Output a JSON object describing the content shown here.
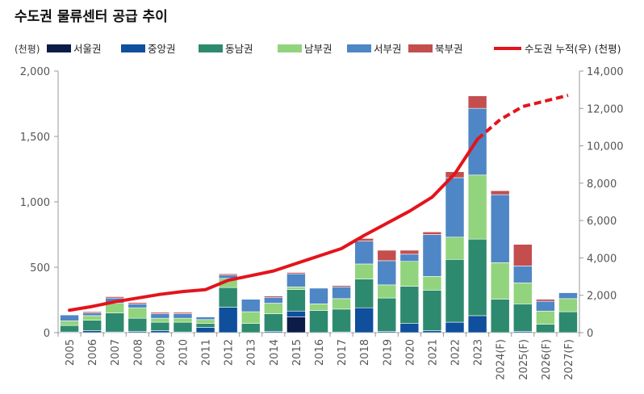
{
  "title": "수도권 물류센터 공급 추이",
  "chart_data": {
    "type": "bar",
    "stacked": true,
    "categories": [
      "2005",
      "2006",
      "2007",
      "2008",
      "2009",
      "2010",
      "2011",
      "2012",
      "2013",
      "2014",
      "2015",
      "2016",
      "2017",
      "2018",
      "2019",
      "2020",
      "2021",
      "2022",
      "2023",
      "2024(F)",
      "2025(F)",
      "2026(F)",
      "2027(F)"
    ],
    "left_axis": {
      "unit": "(천평)",
      "ylim": [
        0,
        2000
      ],
      "ticks": [
        "0",
        "500",
        "1,000",
        "1,500",
        "2,000"
      ],
      "tick_values": [
        0,
        500,
        1000,
        1500,
        2000
      ]
    },
    "right_axis": {
      "unit": "(천평)",
      "ylim": [
        0,
        14000
      ],
      "ticks": [
        "0",
        "2,000",
        "4,000",
        "6,000",
        "8,000",
        "10,000",
        "12,000",
        "14,000"
      ],
      "tick_values": [
        0,
        2000,
        4000,
        6000,
        8000,
        10000,
        12000,
        14000
      ]
    },
    "series": [
      {
        "name": "서울권",
        "color": "#0d1b48",
        "values": [
          0,
          0,
          0,
          0,
          0,
          0,
          0,
          0,
          0,
          0,
          120,
          0,
          0,
          0,
          0,
          0,
          0,
          0,
          0,
          0,
          0,
          0,
          0
        ]
      },
      {
        "name": "중앙권",
        "color": "#0f4f9c",
        "values": [
          5,
          15,
          5,
          10,
          15,
          5,
          40,
          195,
          0,
          10,
          45,
          0,
          5,
          190,
          10,
          70,
          15,
          80,
          130,
          0,
          10,
          0,
          0
        ]
      },
      {
        "name": "동남권",
        "color": "#2e8a6e",
        "values": [
          50,
          80,
          145,
          100,
          65,
          75,
          30,
          150,
          70,
          135,
          165,
          170,
          175,
          220,
          255,
          285,
          310,
          480,
          585,
          255,
          210,
          65,
          160
        ]
      },
      {
        "name": "남부권",
        "color": "#92d47d",
        "values": [
          35,
          35,
          75,
          80,
          30,
          30,
          30,
          70,
          90,
          80,
          20,
          50,
          80,
          115,
          100,
          190,
          105,
          170,
          490,
          280,
          160,
          100,
          100
        ]
      },
      {
        "name": "서부권",
        "color": "#4f86c6",
        "values": [
          45,
          20,
          40,
          30,
          35,
          35,
          20,
          25,
          95,
          45,
          100,
          120,
          90,
          175,
          185,
          55,
          320,
          455,
          510,
          520,
          130,
          75,
          45
        ]
      },
      {
        "name": "북부권",
        "color": "#c44e4e",
        "values": [
          0,
          10,
          10,
          10,
          10,
          10,
          0,
          10,
          0,
          10,
          10,
          0,
          10,
          20,
          80,
          30,
          20,
          45,
          95,
          30,
          165,
          15,
          0
        ]
      }
    ],
    "line": {
      "name": "수도권 누적(우) (천평)",
      "color": "#e3141b",
      "axis": "right",
      "values": [
        1200,
        1400,
        1650,
        1850,
        2050,
        2200,
        2300,
        2800,
        3050,
        3300,
        3700,
        4100,
        4500,
        5200,
        5850,
        6500,
        7250,
        8500,
        10350,
        11400,
        12100,
        12400,
        12700
      ],
      "forecast_from_index": 19
    },
    "legend_position": "top"
  }
}
